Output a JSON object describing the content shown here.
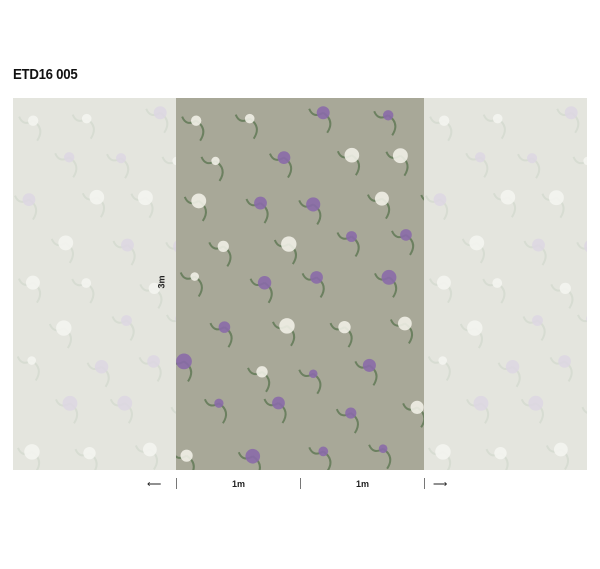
{
  "title": "ETD16 005",
  "height_label": "3m",
  "width_labels": [
    "1m",
    "1m"
  ],
  "arrows": {
    "left": "⟵",
    "right": "⟶"
  },
  "colors": {
    "background": "#a8a898",
    "flower_purple": "#8a6aa8",
    "flower_white": "#f0eee6",
    "leaf": "#6c8060"
  }
}
